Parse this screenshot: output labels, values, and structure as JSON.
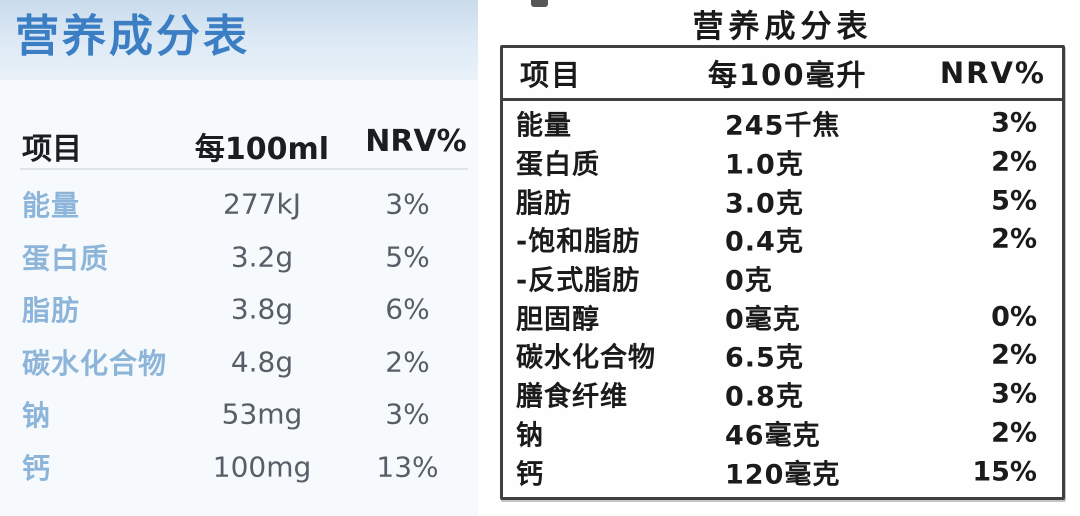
{
  "left_table": {
    "title": "营养成分表",
    "headers": {
      "item": "项目",
      "amount": "每100ml",
      "nrv": "NRV%"
    },
    "rows": [
      {
        "item": "能量",
        "amount": "277kJ",
        "nrv": "3%"
      },
      {
        "item": "蛋白质",
        "amount": "3.2g",
        "nrv": "5%"
      },
      {
        "item": "脂肪",
        "amount": "3.8g",
        "nrv": "6%"
      },
      {
        "item": "碳水化合物",
        "amount": "4.8g",
        "nrv": "2%"
      },
      {
        "item": "钠",
        "amount": "53mg",
        "nrv": "3%"
      },
      {
        "item": "钙",
        "amount": "100mg",
        "nrv": "13%"
      }
    ],
    "colors": {
      "title": "#3c7ec4",
      "item_label": "#8db5da",
      "value_text": "#575e67",
      "header_band_top": "#c9dbec",
      "header_band_bottom": "#eaf2f9",
      "panel_background": "#f7fafd"
    }
  },
  "right_table": {
    "title": "营养成分表",
    "headers": {
      "item": "项目",
      "amount": "每100毫升",
      "nrv": "NRV%"
    },
    "rows": [
      {
        "item": "能量",
        "amount": "245千焦",
        "nrv": "3%"
      },
      {
        "item": "蛋白质",
        "amount": "1.0克",
        "nrv": "2%"
      },
      {
        "item": "脂肪",
        "amount": "3.0克",
        "nrv": "5%"
      },
      {
        "item": "-饱和脂肪",
        "amount": "0.4克",
        "nrv": "2%"
      },
      {
        "item": "-反式脂肪",
        "amount": "0克",
        "nrv": ""
      },
      {
        "item": "胆固醇",
        "amount": "0毫克",
        "nrv": "0%"
      },
      {
        "item": "碳水化合物",
        "amount": "6.5克",
        "nrv": "2%"
      },
      {
        "item": "膳食纤维",
        "amount": "0.8克",
        "nrv": "3%"
      },
      {
        "item": "钠",
        "amount": "46毫克",
        "nrv": "2%"
      },
      {
        "item": "钙",
        "amount": "120毫克",
        "nrv": "15%"
      }
    ],
    "colors": {
      "text": "#1b1b1b",
      "border": "#404040",
      "background": "#fefefe"
    }
  }
}
